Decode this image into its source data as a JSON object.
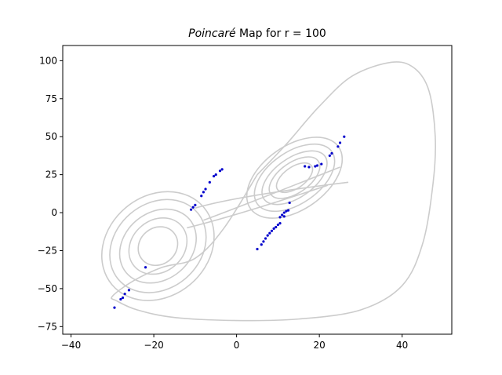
{
  "chart_data": {
    "type": "scatter",
    "title_italic": "Poincaré",
    "title_rest": " Map for r = 100",
    "xlabel": "",
    "ylabel": "",
    "xlim": [
      -42,
      52
    ],
    "ylim": [
      -80,
      110
    ],
    "grid": false,
    "legend": "none",
    "x_ticks": [
      -40,
      -20,
      0,
      20,
      40
    ],
    "y_ticks": [
      -75,
      -50,
      -25,
      0,
      25,
      50,
      75,
      100
    ],
    "x_tick_labels": [
      "−40",
      "−20",
      "0",
      "20",
      "40"
    ],
    "y_tick_labels": [
      "−75",
      "−50",
      "−25",
      "0",
      "25",
      "50",
      "75",
      "100"
    ],
    "series": [
      {
        "kind": "trajectory",
        "color": "#cccccc",
        "outer_loop": [
          [
            5,
            25
          ],
          [
            12,
            45
          ],
          [
            20,
            70
          ],
          [
            28,
            90
          ],
          [
            37.5,
            99
          ],
          [
            43,
            95
          ],
          [
            46.5,
            80
          ],
          [
            48,
            50
          ],
          [
            47.5,
            20
          ],
          [
            45,
            -20
          ],
          [
            40,
            -48
          ],
          [
            30,
            -64
          ],
          [
            15,
            -70
          ],
          [
            0,
            -71
          ],
          [
            -15,
            -69
          ],
          [
            -24,
            -64
          ],
          [
            -29,
            -58
          ],
          [
            -30,
            -55
          ],
          [
            -25,
            -45
          ],
          [
            -18,
            -36
          ],
          [
            -10,
            -30
          ],
          [
            -3,
            -10
          ],
          [
            5,
            25
          ]
        ],
        "right_rings": [
          {
            "cx": 14,
            "cy": 23,
            "rx": [
              5,
              7,
              9,
              11,
              13
            ],
            "ry": [
              7,
              10,
              13,
              17,
              21
            ]
          }
        ],
        "left_rings": [
          {
            "cx": -19,
            "cy": -22,
            "rx": [
              5,
              7.5,
              10,
              12.5,
              14.5
            ],
            "ry": [
              12,
              17,
              22,
              28,
              33
            ]
          }
        ]
      },
      {
        "kind": "section_points",
        "color": "#0000cc",
        "points": [
          [
            -29.5,
            -62.5
          ],
          [
            -28,
            -57
          ],
          [
            -27.5,
            -56
          ],
          [
            -27,
            -53.5
          ],
          [
            -26,
            -51
          ],
          [
            -22,
            -36
          ],
          [
            -11,
            2
          ],
          [
            -10.5,
            3.5
          ],
          [
            -10,
            5
          ],
          [
            -8.5,
            11
          ],
          [
            -8,
            13.5
          ],
          [
            -7.5,
            15.5
          ],
          [
            -6.5,
            20
          ],
          [
            -5.5,
            24
          ],
          [
            -5,
            25
          ],
          [
            -4,
            27.5
          ],
          [
            -3.5,
            28.5
          ],
          [
            5,
            -24
          ],
          [
            6,
            -21
          ],
          [
            6.5,
            -19
          ],
          [
            7,
            -17
          ],
          [
            7.5,
            -15
          ],
          [
            8,
            -13.5
          ],
          [
            8.5,
            -12
          ],
          [
            9,
            -10.5
          ],
          [
            9.5,
            -9.5
          ],
          [
            10,
            -8
          ],
          [
            10.5,
            -7
          ],
          [
            10.5,
            -3
          ],
          [
            11,
            -1.5
          ],
          [
            11.5,
            -2.5
          ],
          [
            11.5,
            0
          ],
          [
            12,
            1
          ],
          [
            12.5,
            1.5
          ],
          [
            12.8,
            6.5
          ],
          [
            16.5,
            30.5
          ],
          [
            17.5,
            30
          ],
          [
            19,
            30.5
          ],
          [
            19.5,
            31
          ],
          [
            20.5,
            32
          ],
          [
            22.5,
            37.5
          ],
          [
            23,
            39
          ],
          [
            24.5,
            43.5
          ],
          [
            25,
            46
          ],
          [
            26,
            50
          ]
        ]
      }
    ]
  }
}
